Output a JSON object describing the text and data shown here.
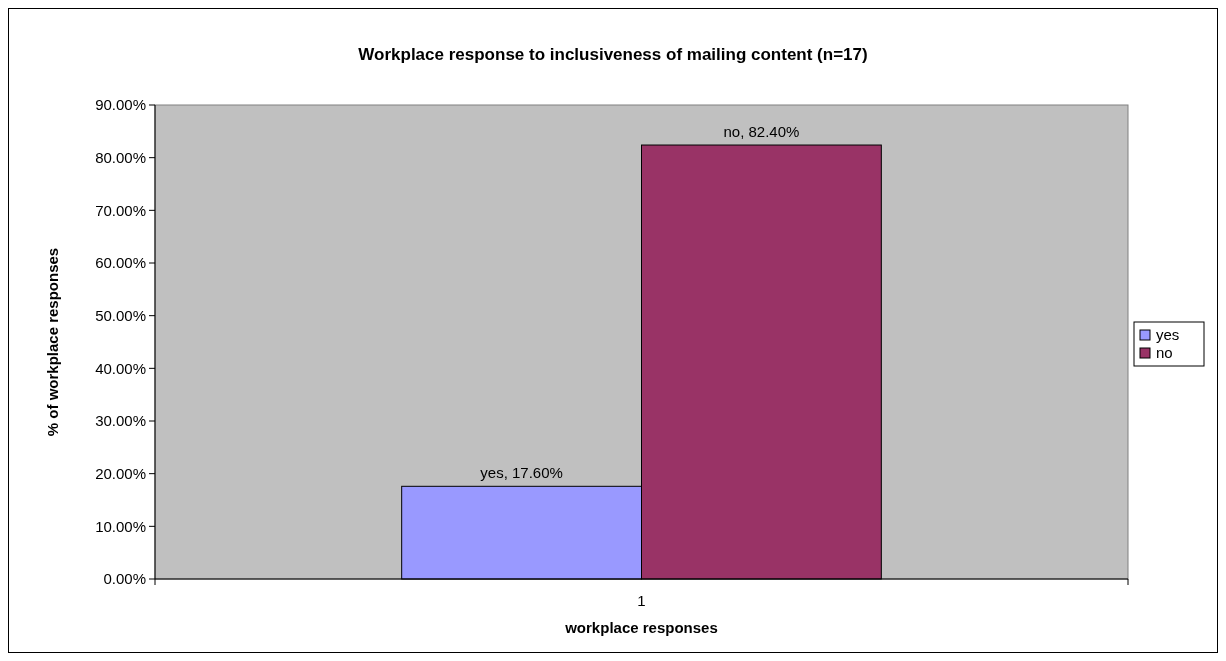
{
  "chart_data": {
    "type": "bar",
    "title": "Workplace response to inclusiveness of mailing content (n=17)",
    "xlabel": "workplace responses",
    "ylabel": "% of workplace responses",
    "categories": [
      "1"
    ],
    "series": [
      {
        "name": "yes",
        "color": "#9999ff",
        "values": [
          17.6
        ],
        "value_labels": [
          "yes, 17.60%"
        ]
      },
      {
        "name": "no",
        "color": "#993366",
        "values": [
          82.4
        ],
        "value_labels": [
          "no, 82.40%"
        ]
      }
    ],
    "ylim": [
      0,
      90
    ],
    "yticks": [
      {
        "value": 0,
        "label": "0.00%"
      },
      {
        "value": 10,
        "label": "10.00%"
      },
      {
        "value": 20,
        "label": "20.00%"
      },
      {
        "value": 30,
        "label": "30.00%"
      },
      {
        "value": 40,
        "label": "40.00%"
      },
      {
        "value": 50,
        "label": "50.00%"
      },
      {
        "value": 60,
        "label": "60.00%"
      },
      {
        "value": 70,
        "label": "70.00%"
      },
      {
        "value": 80,
        "label": "80.00%"
      },
      {
        "value": 90,
        "label": "90.00%"
      }
    ],
    "grid": false,
    "legend": "right"
  }
}
